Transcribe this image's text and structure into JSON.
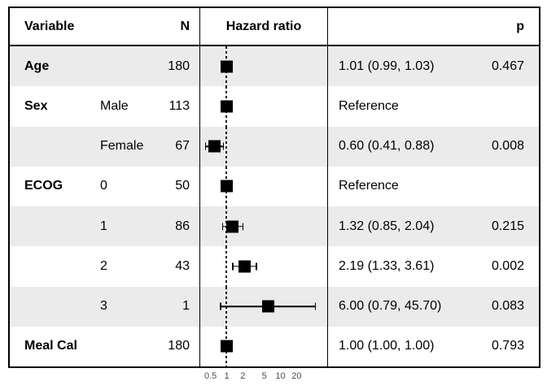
{
  "colors": {
    "background": "#ffffff",
    "stripe": "#ebebeb",
    "border": "#000000",
    "marker": "#000000",
    "axis_text": "#4d4d4d"
  },
  "chart_data": {
    "type": "forest",
    "x_scale": "log10",
    "null_line": 1,
    "x_ticks": [
      0.5,
      1,
      2,
      5,
      10,
      20
    ],
    "x_tick_labels": [
      "0.5",
      "1",
      "2",
      "5",
      "10",
      "20"
    ],
    "columns": {
      "variable": "Variable",
      "n": "N",
      "plot": "Hazard ratio",
      "p": "p"
    },
    "rows": [
      {
        "variable": "Age",
        "level": "",
        "n": "180",
        "hr": 1.01,
        "ci_low": 0.99,
        "ci_high": 1.03,
        "estimate_label": "1.01 (0.99, 1.03)",
        "p": "0.467",
        "reference": false,
        "shaded": true
      },
      {
        "variable": "Sex",
        "level": "Male",
        "n": "113",
        "hr": 1.0,
        "ci_low": null,
        "ci_high": null,
        "estimate_label": "Reference",
        "p": "",
        "reference": true,
        "shaded": false
      },
      {
        "variable": "",
        "level": "Female",
        "n": "67",
        "hr": 0.6,
        "ci_low": 0.41,
        "ci_high": 0.88,
        "estimate_label": "0.60 (0.41, 0.88)",
        "p": "0.008",
        "reference": false,
        "shaded": true
      },
      {
        "variable": "ECOG",
        "level": "0",
        "n": "50",
        "hr": 1.0,
        "ci_low": null,
        "ci_high": null,
        "estimate_label": "Reference",
        "p": "",
        "reference": true,
        "shaded": false
      },
      {
        "variable": "",
        "level": "1",
        "n": "86",
        "hr": 1.32,
        "ci_low": 0.85,
        "ci_high": 2.04,
        "estimate_label": "1.32 (0.85, 2.04)",
        "p": "0.215",
        "reference": false,
        "shaded": true
      },
      {
        "variable": "",
        "level": "2",
        "n": "43",
        "hr": 2.19,
        "ci_low": 1.33,
        "ci_high": 3.61,
        "estimate_label": "2.19 (1.33, 3.61)",
        "p": "0.002",
        "reference": false,
        "shaded": false
      },
      {
        "variable": "",
        "level": "3",
        "n": "1",
        "hr": 6.0,
        "ci_low": 0.79,
        "ci_high": 45.7,
        "estimate_label": "6.00 (0.79, 45.70)",
        "p": "0.083",
        "reference": false,
        "shaded": true
      },
      {
        "variable": "Meal Cal",
        "level": "",
        "n": "180",
        "hr": 1.0,
        "ci_low": 1.0,
        "ci_high": 1.0,
        "estimate_label": "1.00 (1.00, 1.00)",
        "p": "0.793",
        "reference": false,
        "shaded": false
      }
    ]
  }
}
